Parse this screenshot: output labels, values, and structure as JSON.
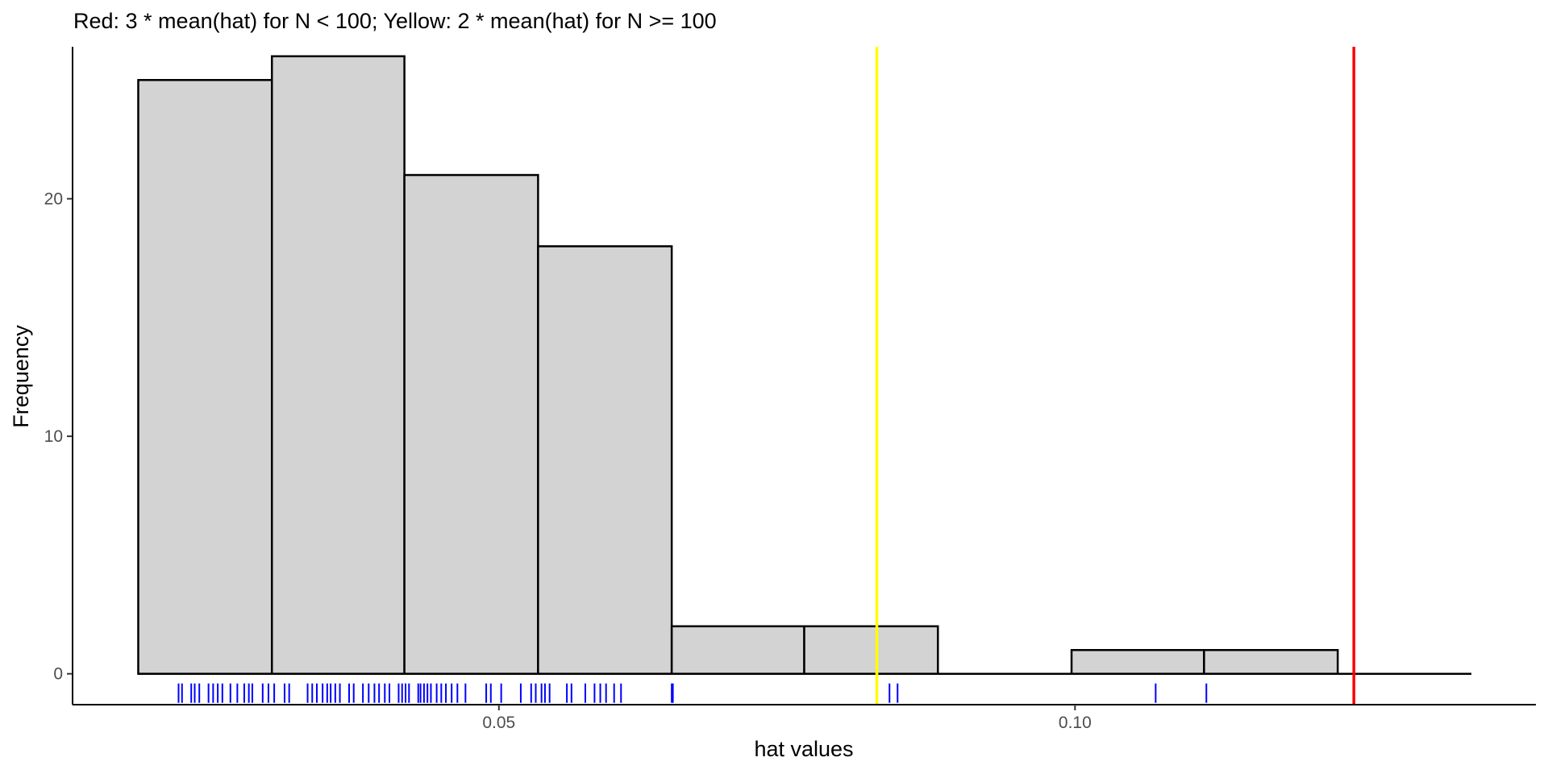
{
  "chart_data": {
    "type": "bar",
    "title": "Red: 3 * mean(hat) for N < 100;  Yellow: 2 * mean(hat) for N >= 100",
    "xlabel": "hat values",
    "ylabel": "Frequency",
    "xlim": [
      0.013,
      0.14
    ],
    "ylim": [
      -1.3,
      26.4
    ],
    "x_ticks": [
      {
        "value": 0.05,
        "label": "0.05"
      },
      {
        "value": 0.1,
        "label": "0.10"
      }
    ],
    "y_ticks": [
      {
        "value": 0,
        "label": "0"
      },
      {
        "value": 10,
        "label": "10"
      },
      {
        "value": 20,
        "label": "20"
      }
    ],
    "bins": [
      {
        "start": 0.0187,
        "end": 0.0303,
        "count": 25
      },
      {
        "start": 0.0303,
        "end": 0.0418,
        "count": 26
      },
      {
        "start": 0.0418,
        "end": 0.0534,
        "count": 21
      },
      {
        "start": 0.0534,
        "end": 0.065,
        "count": 18
      },
      {
        "start": 0.065,
        "end": 0.0765,
        "count": 2
      },
      {
        "start": 0.0765,
        "end": 0.0881,
        "count": 2
      },
      {
        "start": 0.0881,
        "end": 0.0997,
        "count": 0
      },
      {
        "start": 0.0997,
        "end": 0.1112,
        "count": 1
      },
      {
        "start": 0.1112,
        "end": 0.1228,
        "count": 1
      },
      {
        "start": 0.1228,
        "end": 0.1344,
        "count": 0
      }
    ],
    "rug": [
      0.0222,
      0.0225,
      0.0233,
      0.0236,
      0.024,
      0.0248,
      0.0252,
      0.0256,
      0.026,
      0.0267,
      0.0273,
      0.0279,
      0.0283,
      0.0286,
      0.0295,
      0.03,
      0.0305,
      0.0314,
      0.0318,
      0.0334,
      0.0338,
      0.0342,
      0.0347,
      0.0351,
      0.0354,
      0.0358,
      0.0362,
      0.037,
      0.0374,
      0.0382,
      0.0387,
      0.0392,
      0.0396,
      0.0401,
      0.0405,
      0.0413,
      0.0416,
      0.0419,
      0.0422,
      0.043,
      0.0432,
      0.0435,
      0.0438,
      0.0441,
      0.0446,
      0.045,
      0.0454,
      0.0459,
      0.0464,
      0.0471,
      0.0489,
      0.0493,
      0.0502,
      0.0519,
      0.0528,
      0.0532,
      0.0537,
      0.054,
      0.0544,
      0.0559,
      0.0563,
      0.0575,
      0.0583,
      0.0588,
      0.0593,
      0.06,
      0.0606,
      0.065,
      0.0651,
      0.0839,
      0.0846,
      0.107,
      0.1114
    ],
    "reference_lines": [
      {
        "x": 0.0828,
        "color": "#FFFF00"
      },
      {
        "x": 0.1242,
        "color": "#FF0000"
      }
    ],
    "bar_fill": "#D3D3D3",
    "bar_stroke": "#000000",
    "rug_color": "#0000FF",
    "grid": false
  }
}
